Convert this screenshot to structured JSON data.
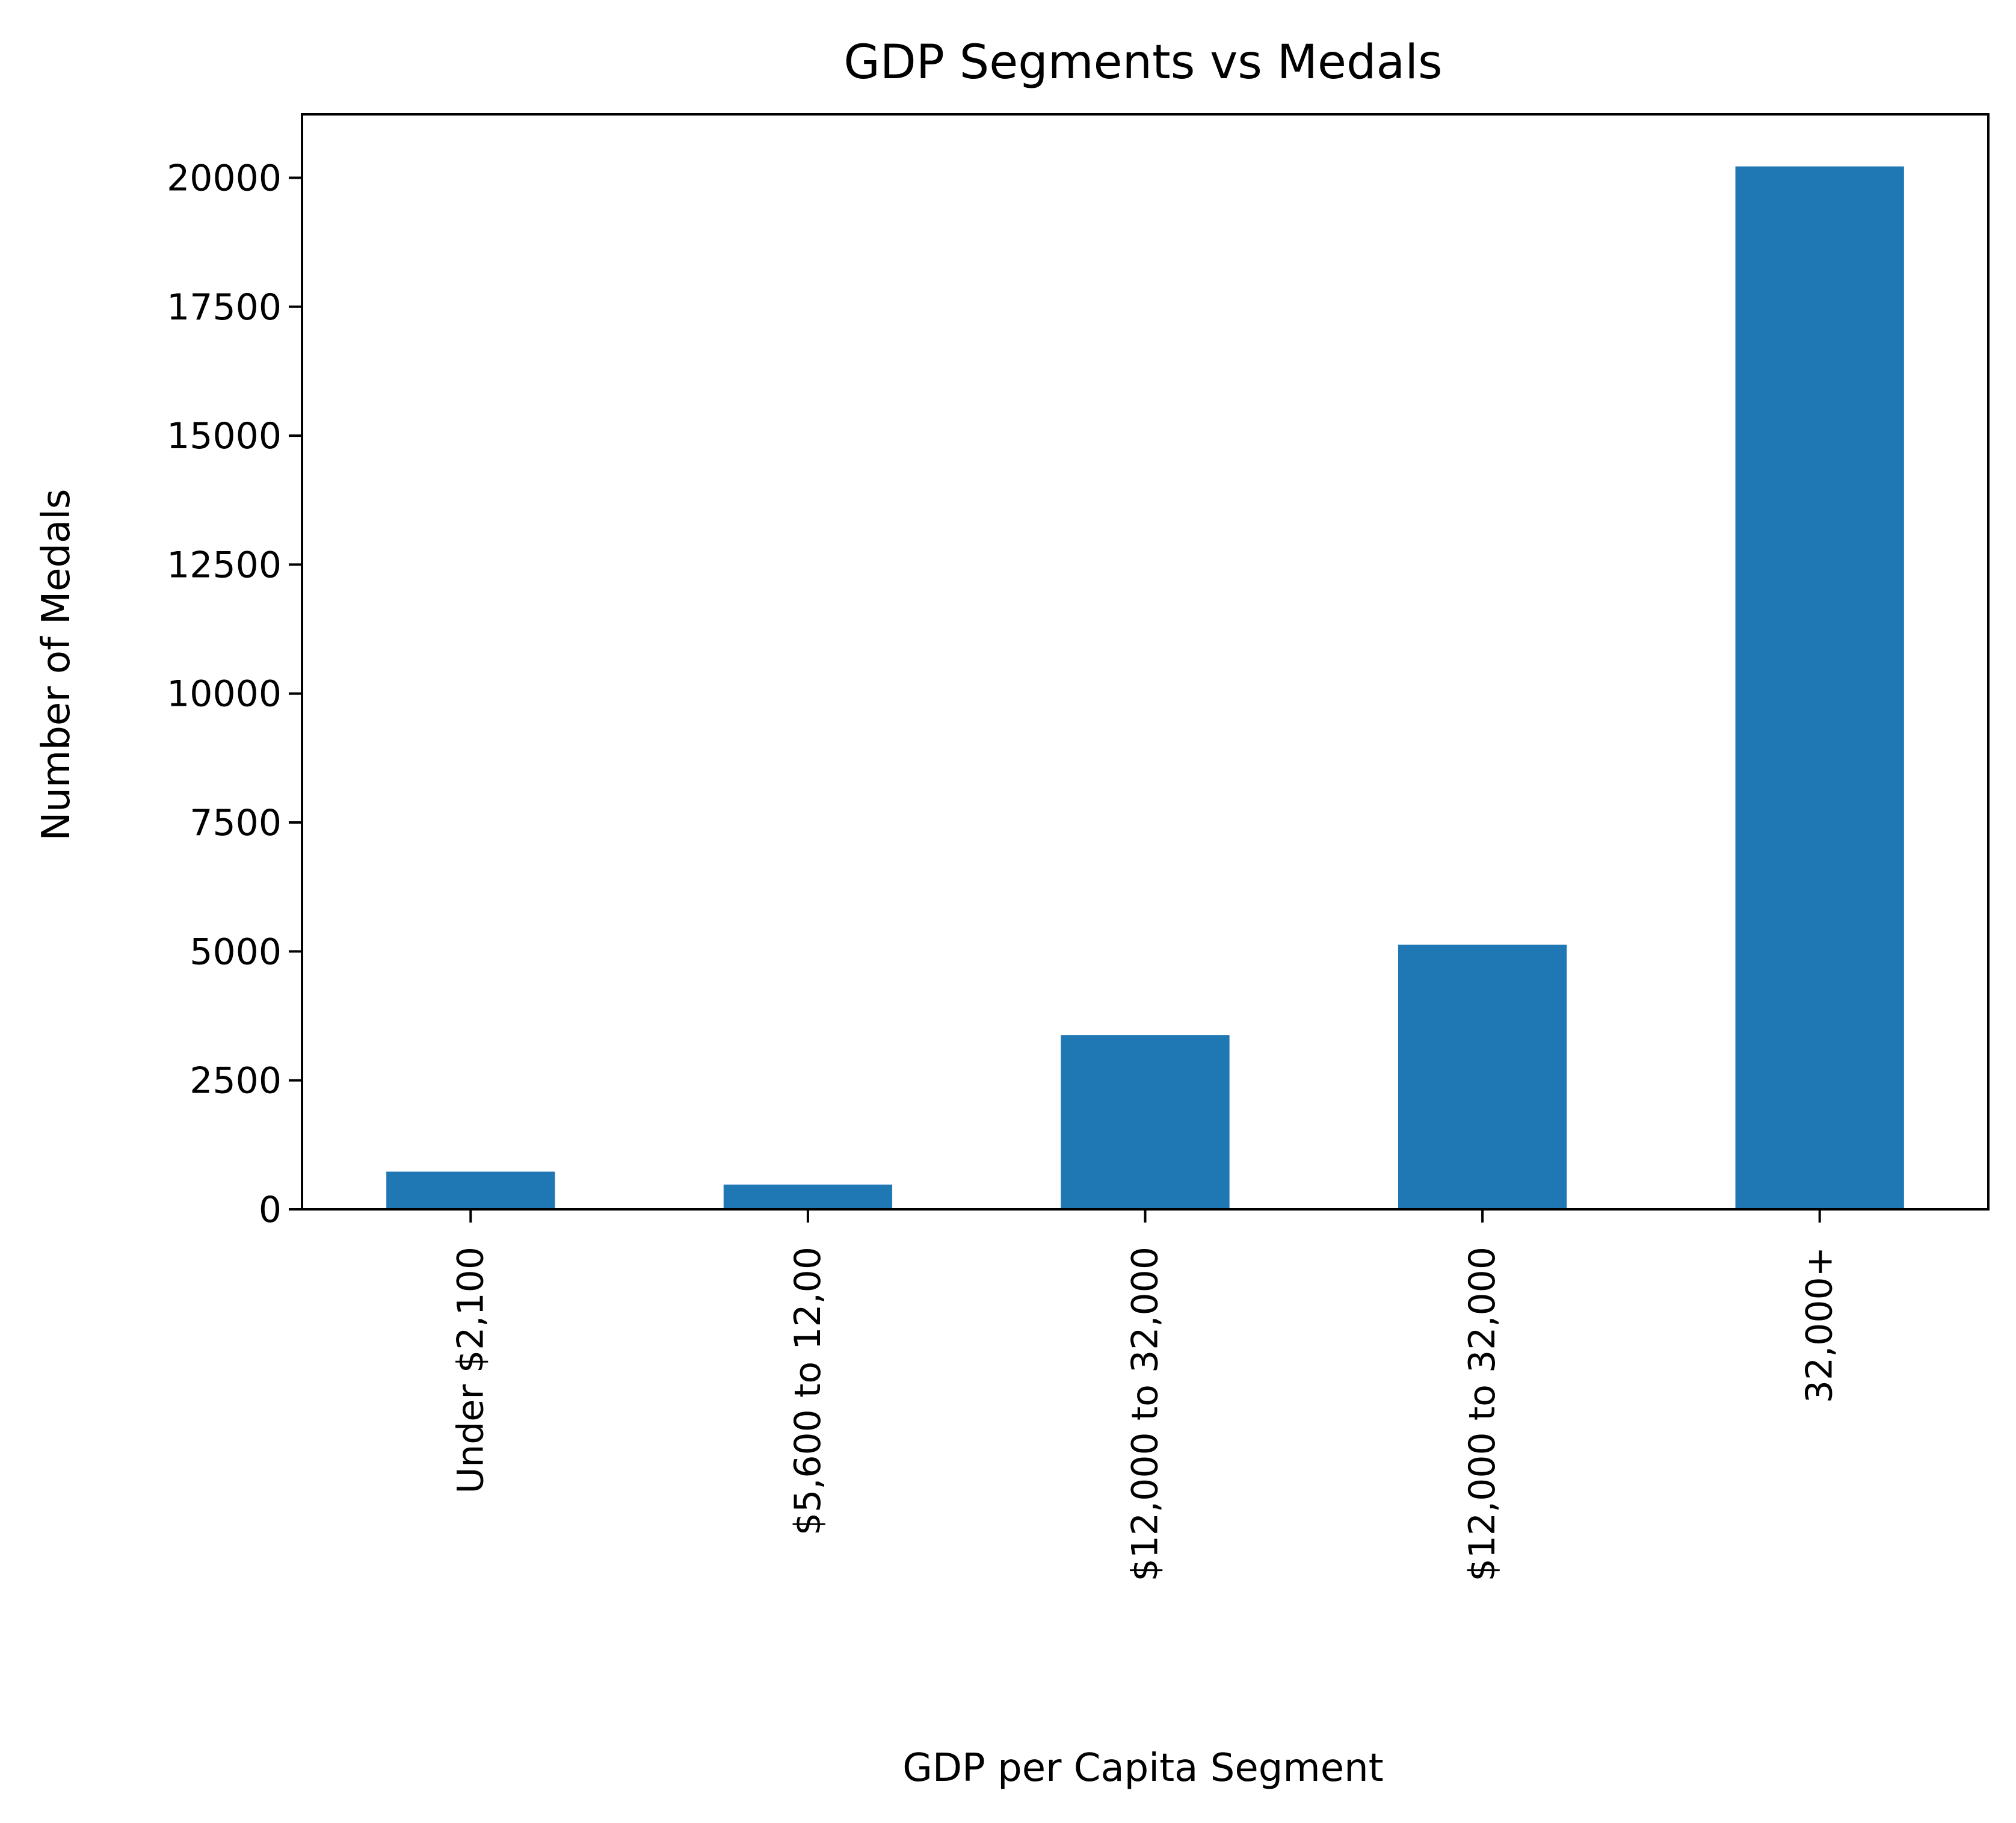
{
  "chart_data": {
    "type": "bar",
    "title": "GDP Segments vs Medals",
    "xlabel": "GDP per Capita Segment",
    "ylabel": "Number of Medals",
    "categories": [
      "Under $2,100",
      "$5,600 to 12,00",
      "$12,000 to 32,000",
      "$12,000 to 32,000",
      "32,000+"
    ],
    "values": [
      730,
      480,
      3380,
      5130,
      20220
    ],
    "ylim": [
      0,
      21230
    ],
    "yticks": [
      0,
      2500,
      5000,
      7500,
      10000,
      12500,
      15000,
      17500,
      20000
    ],
    "bar_color": "#1f77b4",
    "grid": false,
    "legend": "none"
  }
}
